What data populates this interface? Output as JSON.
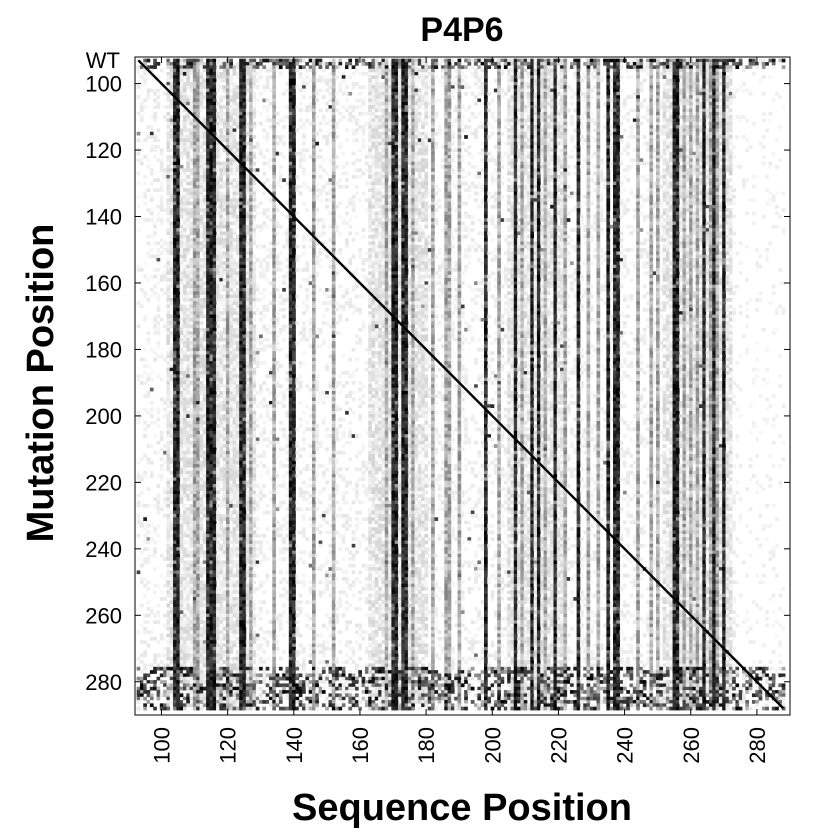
{
  "chart_data": {
    "type": "heatmap",
    "title": "P4P6",
    "xlabel": "Sequence Position",
    "ylabel": "Mutation Position",
    "xlim": [
      92,
      290
    ],
    "ylim": [
      92,
      290
    ],
    "x_ticks": [
      100,
      120,
      140,
      160,
      180,
      200,
      220,
      240,
      260,
      280
    ],
    "y_ticks": [
      100,
      120,
      140,
      160,
      180,
      200,
      220,
      240,
      260,
      280
    ],
    "y_tick_labels": [
      "100",
      "120",
      "140",
      "160",
      "180",
      "200",
      "220",
      "240",
      "260",
      "280"
    ],
    "x_tick_labels": [
      "100",
      "120",
      "140",
      "160",
      "180",
      "200",
      "220",
      "240",
      "260",
      "280"
    ],
    "wt_label": "WT",
    "colormap": "grayscale (white = low, black = high)",
    "diagonal": {
      "from": 93,
      "to": 288,
      "color": "#000000"
    },
    "dark_columns": [
      104,
      105,
      114,
      115,
      116,
      124,
      125,
      139,
      140,
      170,
      171,
      173,
      174,
      198,
      207,
      212,
      214,
      219,
      226,
      235,
      237,
      238,
      255,
      256,
      264,
      267,
      270
    ],
    "medium_columns": [
      110,
      111,
      120,
      127,
      134,
      146,
      152,
      168,
      176,
      182,
      186,
      187,
      190,
      202,
      209,
      216,
      222,
      229,
      232,
      244,
      248,
      250,
      258,
      260,
      262,
      266,
      268
    ],
    "light_band_columns": [
      {
        "from": 102,
        "to": 128
      },
      {
        "from": 163,
        "to": 180
      },
      {
        "from": 205,
        "to": 222
      },
      {
        "from": 252,
        "to": 272
      }
    ],
    "noisy_rows_top": [
      93,
      94,
      95
    ],
    "noisy_rows_bottom": [
      276,
      277,
      278,
      279,
      280,
      281,
      282,
      283,
      284,
      285,
      286,
      287,
      288
    ]
  }
}
